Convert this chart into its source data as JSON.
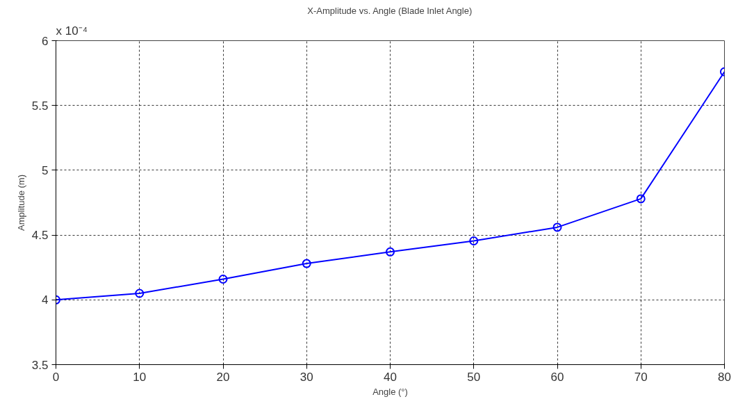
{
  "chart_data": {
    "type": "line",
    "title": "X-Amplitude vs. Angle (Blade Inlet Angle)",
    "xlabel": "Angle (°)",
    "ylabel": "Amplitude (m)",
    "annotations": [
      "x 10⁻⁴"
    ],
    "x": [
      0,
      10,
      20,
      30,
      40,
      50,
      60,
      70,
      80
    ],
    "series": [
      {
        "color": "#0000ff",
        "values": [
          4.0,
          4.05,
          4.16,
          4.28,
          4.37,
          4.455,
          4.56,
          4.78,
          5.76
        ]
      }
    ],
    "xlim": [
      0,
      80
    ],
    "xticks": [
      0,
      10,
      20,
      30,
      40,
      50,
      60,
      70,
      80
    ],
    "ylim": [
      3.5,
      6
    ],
    "yticks": [
      3.5,
      4,
      4.5,
      5,
      5.5,
      6
    ],
    "grid": true,
    "marker": "circle",
    "line_style": "solid"
  }
}
